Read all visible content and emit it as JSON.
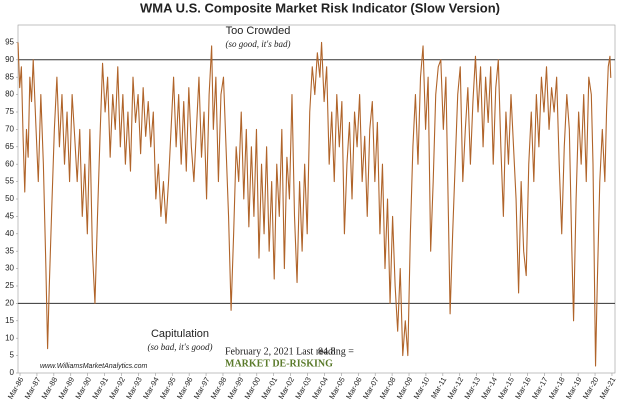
{
  "chart_data": {
    "type": "line",
    "title": "WMA U.S. Composite Market Risk Indicator (Slow Version)",
    "annotations": {
      "top": "Too Crowded",
      "top_sub": "(so good, it's bad)",
      "bottom": "Capitulation",
      "bottom_sub": "(so bad, it's good)",
      "website": "www.WilliamsMarketAnalytics.com",
      "reading_text": "February 2, 2021  Last reading =",
      "reading_value": "84.8",
      "status": "MARKET DE-RISKING"
    },
    "hlines": [
      90,
      20
    ],
    "color": "#b0642a",
    "xlim": [
      1986.05,
      2021.35
    ],
    "ylim": [
      0,
      100
    ],
    "yticks": [
      0,
      5,
      10,
      15,
      20,
      25,
      30,
      35,
      40,
      45,
      50,
      55,
      60,
      65,
      70,
      75,
      80,
      85,
      90,
      95
    ],
    "xticks": [
      {
        "value": 1986.17,
        "label": "Mar-86"
      },
      {
        "value": 1987.17,
        "label": "Mar-87"
      },
      {
        "value": 1988.17,
        "label": "Mar-88"
      },
      {
        "value": 1989.17,
        "label": "Mar-89"
      },
      {
        "value": 1990.17,
        "label": "Mar-90"
      },
      {
        "value": 1991.17,
        "label": "Mar-91"
      },
      {
        "value": 1992.17,
        "label": "Mar-92"
      },
      {
        "value": 1993.17,
        "label": "Mar-93"
      },
      {
        "value": 1994.17,
        "label": "Mar-94"
      },
      {
        "value": 1995.17,
        "label": "Mar-95"
      },
      {
        "value": 1996.17,
        "label": "Mar-96"
      },
      {
        "value": 1997.17,
        "label": "Mar-97"
      },
      {
        "value": 1998.17,
        "label": "Mar-98"
      },
      {
        "value": 1999.17,
        "label": "Mar-99"
      },
      {
        "value": 2000.17,
        "label": "Mar-00"
      },
      {
        "value": 2001.17,
        "label": "Mar-01"
      },
      {
        "value": 2002.17,
        "label": "Mar-02"
      },
      {
        "value": 2003.17,
        "label": "Mar-03"
      },
      {
        "value": 2004.17,
        "label": "Mar-04"
      },
      {
        "value": 2005.17,
        "label": "Mar-05"
      },
      {
        "value": 2006.17,
        "label": "Mar-06"
      },
      {
        "value": 2007.17,
        "label": "Mar-07"
      },
      {
        "value": 2008.17,
        "label": "Mar-08"
      },
      {
        "value": 2009.17,
        "label": "Mar-09"
      },
      {
        "value": 2010.17,
        "label": "Mar-10"
      },
      {
        "value": 2011.17,
        "label": "Mar-11"
      },
      {
        "value": 2012.17,
        "label": "Mar-12"
      },
      {
        "value": 2013.17,
        "label": "Mar-13"
      },
      {
        "value": 2014.17,
        "label": "Mar-14"
      },
      {
        "value": 2015.17,
        "label": "Mar-15"
      },
      {
        "value": 2016.17,
        "label": "Mar-16"
      },
      {
        "value": 2017.17,
        "label": "Mar-17"
      },
      {
        "value": 2018.17,
        "label": "Mar-18"
      },
      {
        "value": 2019.17,
        "label": "Mar-19"
      },
      {
        "value": 2020.17,
        "label": "Mar-20"
      },
      {
        "value": 2021.17,
        "label": "Mar-21"
      }
    ],
    "x": [
      1986.05,
      1986.15,
      1986.25,
      1986.35,
      1986.45,
      1986.55,
      1986.65,
      1986.75,
      1986.85,
      1986.95,
      1987.1,
      1987.25,
      1987.4,
      1987.55,
      1987.7,
      1987.8,
      1987.9,
      1988.05,
      1988.2,
      1988.35,
      1988.5,
      1988.65,
      1988.8,
      1988.95,
      1989.1,
      1989.25,
      1989.4,
      1989.55,
      1989.7,
      1989.85,
      1990.0,
      1990.15,
      1990.3,
      1990.45,
      1990.6,
      1990.75,
      1990.9,
      1991.05,
      1991.2,
      1991.35,
      1991.5,
      1991.65,
      1991.8,
      1991.95,
      1992.1,
      1992.25,
      1992.4,
      1992.55,
      1992.7,
      1992.85,
      1993.0,
      1993.15,
      1993.3,
      1993.45,
      1993.6,
      1993.75,
      1993.9,
      1994.05,
      1994.2,
      1994.35,
      1994.5,
      1994.65,
      1994.8,
      1994.95,
      1995.1,
      1995.25,
      1995.4,
      1995.55,
      1995.7,
      1995.85,
      1996.0,
      1996.15,
      1996.3,
      1996.45,
      1996.6,
      1996.75,
      1996.9,
      1997.05,
      1997.2,
      1997.35,
      1997.5,
      1997.6,
      1997.75,
      1997.9,
      1998.05,
      1998.2,
      1998.35,
      1998.5,
      1998.65,
      1998.8,
      1998.95,
      1999.1,
      1999.25,
      1999.4,
      1999.55,
      1999.7,
      1999.85,
      2000.0,
      2000.15,
      2000.3,
      2000.45,
      2000.6,
      2000.75,
      2000.9,
      2001.05,
      2001.2,
      2001.35,
      2001.5,
      2001.65,
      2001.8,
      2001.95,
      2002.1,
      2002.25,
      2002.4,
      2002.55,
      2002.7,
      2002.85,
      2003.0,
      2003.15,
      2003.3,
      2003.45,
      2003.6,
      2003.75,
      2003.9,
      2004.0,
      2004.15,
      2004.3,
      2004.45,
      2004.6,
      2004.75,
      2004.9,
      2005.05,
      2005.2,
      2005.35,
      2005.5,
      2005.65,
      2005.8,
      2005.95,
      2006.1,
      2006.25,
      2006.4,
      2006.55,
      2006.7,
      2006.85,
      2007.0,
      2007.15,
      2007.3,
      2007.45,
      2007.6,
      2007.75,
      2007.9,
      2008.05,
      2008.2,
      2008.35,
      2008.5,
      2008.65,
      2008.8,
      2008.95,
      2009.1,
      2009.25,
      2009.4,
      2009.55,
      2009.7,
      2009.85,
      2010.0,
      2010.15,
      2010.3,
      2010.45,
      2010.6,
      2010.75,
      2010.9,
      2011.05,
      2011.2,
      2011.35,
      2011.5,
      2011.6,
      2011.75,
      2011.9,
      2012.05,
      2012.2,
      2012.35,
      2012.5,
      2012.65,
      2012.8,
      2012.95,
      2013.1,
      2013.25,
      2013.4,
      2013.55,
      2013.7,
      2013.85,
      2014.0,
      2014.15,
      2014.3,
      2014.45,
      2014.6,
      2014.75,
      2014.9,
      2015.05,
      2015.2,
      2015.35,
      2015.5,
      2015.65,
      2015.8,
      2015.95,
      2016.1,
      2016.25,
      2016.4,
      2016.55,
      2016.7,
      2016.85,
      2017.0,
      2017.15,
      2017.3,
      2017.45,
      2017.6,
      2017.75,
      2017.9,
      2018.05,
      2018.2,
      2018.35,
      2018.5,
      2018.65,
      2018.8,
      2018.9,
      2019.05,
      2019.2,
      2019.35,
      2019.5,
      2019.65,
      2019.8,
      2019.95,
      2020.05,
      2020.2,
      2020.3,
      2020.45,
      2020.6,
      2020.75,
      2020.85,
      2020.95,
      2021.05,
      2021.1
    ],
    "values": [
      95,
      82,
      88,
      68,
      52,
      70,
      62,
      85,
      78,
      90,
      72,
      55,
      80,
      60,
      30,
      7,
      25,
      48,
      70,
      85,
      65,
      80,
      60,
      75,
      55,
      80,
      68,
      55,
      70,
      45,
      60,
      40,
      70,
      35,
      20,
      45,
      68,
      89,
      75,
      85,
      62,
      80,
      70,
      88,
      65,
      80,
      60,
      75,
      58,
      85,
      72,
      80,
      63,
      82,
      68,
      78,
      65,
      75,
      50,
      60,
      45,
      55,
      43,
      55,
      70,
      85,
      65,
      80,
      60,
      78,
      58,
      82,
      65,
      55,
      70,
      85,
      62,
      75,
      50,
      80,
      94,
      70,
      85,
      55,
      80,
      85,
      65,
      45,
      18,
      40,
      65,
      55,
      75,
      50,
      70,
      42,
      65,
      45,
      70,
      33,
      60,
      40,
      65,
      35,
      55,
      27,
      60,
      45,
      70,
      30,
      62,
      50,
      80,
      45,
      26,
      55,
      35,
      60,
      40,
      75,
      88,
      80,
      92,
      85,
      95,
      78,
      88,
      60,
      75,
      55,
      80,
      65,
      78,
      40,
      60,
      72,
      50,
      75,
      65,
      80,
      55,
      68,
      45,
      70,
      78,
      55,
      72,
      40,
      60,
      30,
      50,
      20,
      45,
      25,
      12,
      30,
      5,
      15,
      5,
      40,
      65,
      80,
      60,
      85,
      94,
      70,
      85,
      35,
      55,
      80,
      88,
      90,
      70,
      85,
      45,
      17,
      40,
      60,
      80,
      88,
      55,
      70,
      82,
      60,
      78,
      91,
      75,
      88,
      65,
      85,
      72,
      88,
      60,
      82,
      90,
      65,
      45,
      75,
      60,
      80,
      65,
      50,
      23,
      55,
      35,
      28,
      60,
      75,
      55,
      80,
      65,
      85,
      75,
      88,
      70,
      82,
      75,
      85,
      60,
      40,
      65,
      80,
      70,
      35,
      15,
      50,
      75,
      60,
      80,
      55,
      85,
      80,
      60,
      2,
      25,
      55,
      70,
      55,
      75,
      88,
      91,
      84.8
    ]
  }
}
